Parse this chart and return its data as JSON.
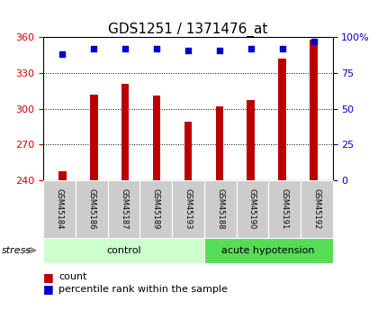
{
  "title": "GDS1251 / 1371476_at",
  "samples": [
    "GSM45184",
    "GSM45186",
    "GSM45187",
    "GSM45189",
    "GSM45193",
    "GSM45188",
    "GSM45190",
    "GSM45191",
    "GSM45192"
  ],
  "counts": [
    248,
    312,
    321,
    311,
    289,
    302,
    307,
    342,
    358
  ],
  "percentile_ranks": [
    88,
    92,
    92,
    92,
    91,
    91,
    92,
    92,
    97
  ],
  "bar_color": "#bb0000",
  "dot_color": "#0000cc",
  "ylim_left": [
    240,
    360
  ],
  "ylim_right": [
    0,
    100
  ],
  "yticks_left": [
    240,
    270,
    300,
    330,
    360
  ],
  "yticks_right": [
    0,
    25,
    50,
    75,
    100
  ],
  "ylabel_left_color": "#cc0000",
  "ylabel_right_color": "#0000cc",
  "background_color": "#ffffff",
  "title_fontsize": 11,
  "tick_fontsize": 8,
  "legend_fontsize": 8,
  "groups_info": [
    {
      "label": "control",
      "start": 0,
      "end": 4,
      "color": "#ccffcc"
    },
    {
      "label": "acute hypotension",
      "start": 5,
      "end": 8,
      "color": "#55dd55"
    }
  ]
}
